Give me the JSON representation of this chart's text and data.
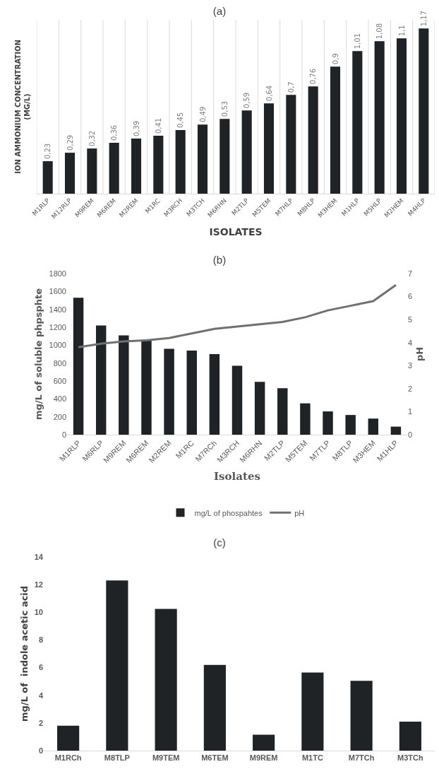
{
  "chart_data": [
    {
      "type": "bar",
      "title": "(a)",
      "xlabel": "ISOLATES",
      "ylabel": "ION AMMONIUM CONCENTRATION\n(MG/L)",
      "grid": "x",
      "categories": [
        "M1RLP",
        "M12RLP",
        "M9REM",
        "M6REM",
        "M2REM",
        "M1RC",
        "M3RCH",
        "M3TCH",
        "M6RHN",
        "M2TLP",
        "M5TEM",
        "M7HLP",
        "M8HLP",
        "M3HEM",
        "M1HLP",
        "M5HLP",
        "M2HEM",
        "M4HLP"
      ],
      "values": [
        0.23,
        0.29,
        0.32,
        0.36,
        0.39,
        0.41,
        0.45,
        0.49,
        0.53,
        0.59,
        0.64,
        0.7,
        0.76,
        0.9,
        1.01,
        1.08,
        1.1,
        1.17
      ],
      "value_labels": [
        "0,23",
        "0,29",
        "0,32",
        "0,36",
        "0,39",
        "0,41",
        "0,45",
        "0,49",
        "0,53",
        "0,59",
        "0,64",
        "0,7",
        "0,76",
        "0,9",
        "1,01",
        "1,08",
        "1,1",
        "1,17"
      ],
      "color": "#1f2326",
      "tick_labels": "x"
    },
    {
      "type": "bar",
      "title": "(b)",
      "xlabel": "Isolates",
      "ylabel": "mg/L of soluble phpsphte",
      "y2label": "pH",
      "legend": "bottom",
      "grid": false,
      "categories": [
        "M1RLP",
        "M6RLP",
        "M9REM",
        "M6REM",
        "M2REM",
        "M1RC",
        "M7RCh",
        "M3RCH",
        "M6RHN",
        "M2TLP",
        "M5TEM",
        "M7TLP",
        "M8TLP",
        "M3HEM",
        "M1HLP"
      ],
      "series": [
        {
          "name": "mg/L of phospahtes",
          "color": "#1f2326",
          "values": [
            1530,
            1220,
            1110,
            1060,
            960,
            940,
            900,
            770,
            590,
            520,
            350,
            260,
            220,
            180,
            90
          ]
        },
        {
          "name": "pH",
          "type": "line",
          "axis": "y2",
          "color": "#707070",
          "values": [
            3.8,
            3.95,
            4.05,
            4.1,
            4.2,
            4.4,
            4.6,
            4.7,
            4.8,
            4.9,
            5.1,
            5.4,
            5.6,
            5.8,
            6.5
          ]
        }
      ],
      "ylim": [
        0,
        1800
      ],
      "yticks": [
        0,
        200,
        400,
        600,
        800,
        1000,
        1200,
        1400,
        1600,
        1800
      ],
      "y2lim": [
        0,
        7
      ],
      "y2ticks": [
        0,
        1,
        2,
        3,
        4,
        5,
        6,
        7
      ]
    },
    {
      "type": "bar",
      "title": "(c)",
      "ylabel": "mg/L of  indole acetic acid",
      "grid": false,
      "categories": [
        "M1RCh",
        "M8TLP",
        "M9TEM",
        "M6TEM",
        "M9REM",
        "M1TC",
        "M7TCh",
        "M3TCh"
      ],
      "values": [
        1.8,
        12.3,
        10.25,
        6.2,
        1.15,
        5.65,
        5.05,
        2.1
      ],
      "color": "#1f2326",
      "ylim": [
        0,
        14
      ],
      "yticks": [
        0,
        2,
        4,
        6,
        8,
        10,
        12,
        14
      ]
    }
  ]
}
